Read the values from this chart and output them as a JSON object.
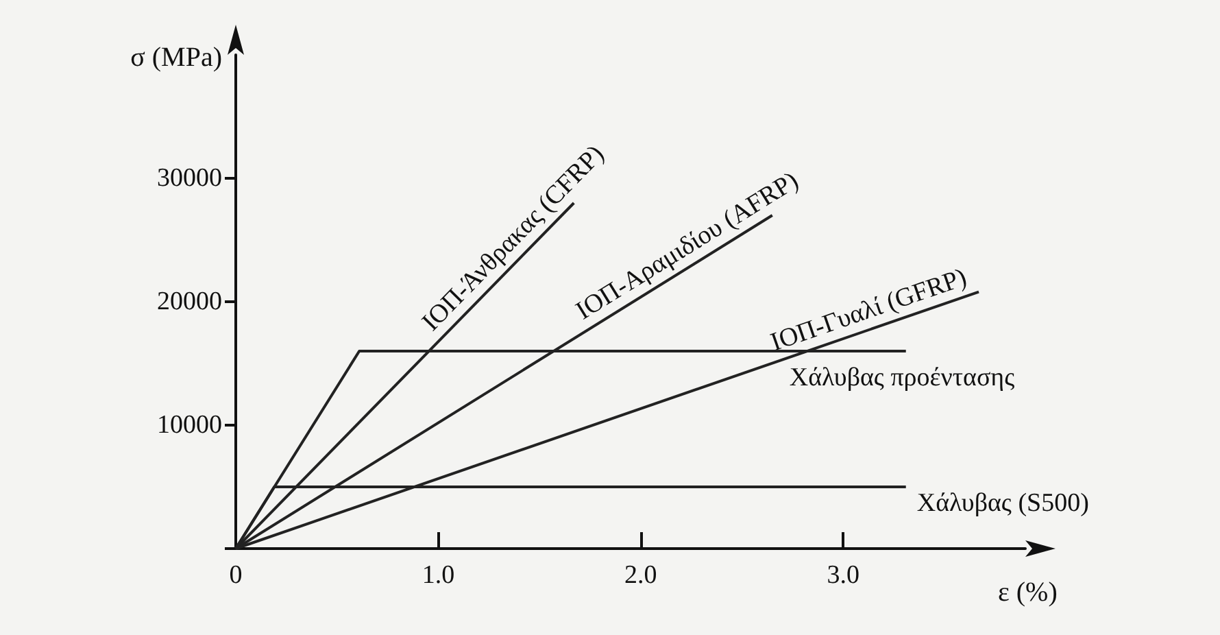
{
  "chart_data": {
    "type": "line",
    "xlabel": "ε (%)",
    "ylabel": "σ (MPa)",
    "xlim": [
      0,
      3.9
    ],
    "ylim": [
      0,
      40000
    ],
    "xticks": [
      {
        "value": 0,
        "label": "0"
      },
      {
        "value": 1,
        "label": "1.0"
      },
      {
        "value": 2,
        "label": "2.0"
      },
      {
        "value": 3,
        "label": "3.0"
      }
    ],
    "yticks": [
      {
        "value": 0,
        "label": null
      },
      10000,
      20000,
      30000
    ],
    "grid": false,
    "legend": false,
    "marker": "none",
    "line_style": "solid",
    "series": [
      {
        "name": "ΙΟΠ-Άνθρακας (CFRP)",
        "color": "#222222",
        "x": [
          0,
          1.67
        ],
        "values": [
          0,
          28000
        ]
      },
      {
        "name": "ΙΟΠ-Αραμιδίου (AFRP)",
        "color": "#222222",
        "x": [
          0,
          2.65
        ],
        "values": [
          0,
          27000
        ]
      },
      {
        "name": "ΙΟΠ-Γυαλί (GFRP)",
        "color": "#222222",
        "x": [
          0,
          3.67
        ],
        "values": [
          0,
          20800
        ]
      },
      {
        "name": "Χάλυβας προέντασης",
        "color": "#222222",
        "x": [
          0,
          0.61,
          3.31
        ],
        "values": [
          0,
          16000,
          16000
        ]
      },
      {
        "name": "Χάλυβας (S500)",
        "color": "#222222",
        "x": [
          0,
          0.19,
          3.31
        ],
        "values": [
          0,
          5000,
          5000
        ]
      }
    ]
  }
}
